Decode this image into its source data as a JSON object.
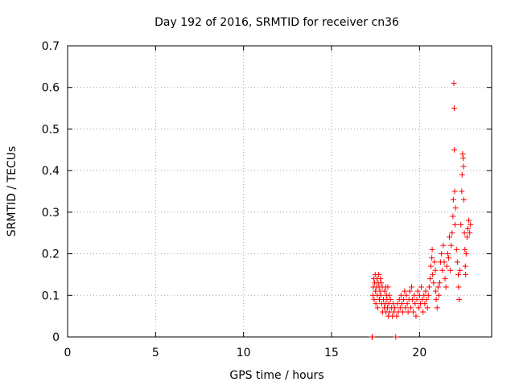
{
  "chart_data": {
    "type": "scatter",
    "title": "Day 192 of 2016, SRMTID for receiver cn36",
    "xlabel": "GPS time / hours",
    "ylabel": "SRMTID / TECUs",
    "xlim": [
      0,
      24.1
    ],
    "ylim": [
      0,
      0.7
    ],
    "xticks": [
      0,
      5,
      10,
      15,
      20
    ],
    "xtick_labels": [
      "0",
      "5",
      "10",
      "15",
      "20"
    ],
    "yticks": [
      0,
      0.1,
      0.2,
      0.3,
      0.4,
      0.5,
      0.6,
      0.7
    ],
    "ytick_labels": [
      "0",
      "0.1",
      "0.2",
      "0.3",
      "0.4",
      "0.5",
      "0.6",
      "0.7"
    ],
    "grid": true,
    "marker": "+",
    "color": "#ff0000",
    "series": [
      {
        "name": "SRMTID",
        "points": [
          [
            17.3,
            0.0
          ],
          [
            17.32,
            0.0
          ],
          [
            18.65,
            0.0
          ],
          [
            17.35,
            0.1
          ],
          [
            17.38,
            0.12
          ],
          [
            17.4,
            0.14
          ],
          [
            17.42,
            0.09
          ],
          [
            17.45,
            0.13
          ],
          [
            17.48,
            0.15
          ],
          [
            17.5,
            0.11
          ],
          [
            17.52,
            0.08
          ],
          [
            17.55,
            0.12
          ],
          [
            17.58,
            0.14
          ],
          [
            17.6,
            0.1
          ],
          [
            17.62,
            0.07
          ],
          [
            17.65,
            0.13
          ],
          [
            17.68,
            0.15
          ],
          [
            17.7,
            0.12
          ],
          [
            17.72,
            0.09
          ],
          [
            17.75,
            0.11
          ],
          [
            17.78,
            0.14
          ],
          [
            17.8,
            0.1
          ],
          [
            17.82,
            0.13
          ],
          [
            17.85,
            0.08
          ],
          [
            17.88,
            0.12
          ],
          [
            17.9,
            0.06
          ],
          [
            17.95,
            0.09
          ],
          [
            18.0,
            0.07
          ],
          [
            18.02,
            0.11
          ],
          [
            18.05,
            0.08
          ],
          [
            18.08,
            0.12
          ],
          [
            18.1,
            0.06
          ],
          [
            18.12,
            0.1
          ],
          [
            18.15,
            0.09
          ],
          [
            18.18,
            0.07
          ],
          [
            18.2,
            0.12
          ],
          [
            18.22,
            0.05
          ],
          [
            18.25,
            0.08
          ],
          [
            18.28,
            0.1
          ],
          [
            18.3,
            0.06
          ],
          [
            18.35,
            0.09
          ],
          [
            18.4,
            0.07
          ],
          [
            18.45,
            0.05
          ],
          [
            18.5,
            0.08
          ],
          [
            18.55,
            0.06
          ],
          [
            18.6,
            0.07
          ],
          [
            18.7,
            0.05
          ],
          [
            18.75,
            0.08
          ],
          [
            18.8,
            0.06
          ],
          [
            18.85,
            0.09
          ],
          [
            18.9,
            0.07
          ],
          [
            18.95,
            0.1
          ],
          [
            19.0,
            0.08
          ],
          [
            19.05,
            0.06
          ],
          [
            19.1,
            0.09
          ],
          [
            19.15,
            0.11
          ],
          [
            19.2,
            0.07
          ],
          [
            19.25,
            0.1
          ],
          [
            19.3,
            0.08
          ],
          [
            19.35,
            0.06
          ],
          [
            19.4,
            0.09
          ],
          [
            19.45,
            0.11
          ],
          [
            19.5,
            0.07
          ],
          [
            19.55,
            0.12
          ],
          [
            19.6,
            0.09
          ],
          [
            19.65,
            0.06
          ],
          [
            19.7,
            0.1
          ],
          [
            19.75,
            0.08
          ],
          [
            19.8,
            0.05
          ],
          [
            19.85,
            0.09
          ],
          [
            19.9,
            0.11
          ],
          [
            19.95,
            0.07
          ],
          [
            20.0,
            0.1
          ],
          [
            20.05,
            0.08
          ],
          [
            20.1,
            0.12
          ],
          [
            20.15,
            0.09
          ],
          [
            20.2,
            0.06
          ],
          [
            20.25,
            0.1
          ],
          [
            20.3,
            0.08
          ],
          [
            20.35,
            0.11
          ],
          [
            20.4,
            0.09
          ],
          [
            20.45,
            0.07
          ],
          [
            20.5,
            0.1
          ],
          [
            20.55,
            0.12
          ],
          [
            20.6,
            0.14
          ],
          [
            20.65,
            0.17
          ],
          [
            20.7,
            0.19
          ],
          [
            20.72,
            0.21
          ],
          [
            20.75,
            0.15
          ],
          [
            20.8,
            0.13
          ],
          [
            20.85,
            0.18
          ],
          [
            20.9,
            0.16
          ],
          [
            20.92,
            0.11
          ],
          [
            20.95,
            0.09
          ],
          [
            21.0,
            0.07
          ],
          [
            21.05,
            0.12
          ],
          [
            21.1,
            0.1
          ],
          [
            21.15,
            0.13
          ],
          [
            21.2,
            0.18
          ],
          [
            21.25,
            0.2
          ],
          [
            21.3,
            0.16
          ],
          [
            21.35,
            0.22
          ],
          [
            21.4,
            0.18
          ],
          [
            21.45,
            0.14
          ],
          [
            21.5,
            0.12
          ],
          [
            21.55,
            0.17
          ],
          [
            21.6,
            0.2
          ],
          [
            21.65,
            0.19
          ],
          [
            21.7,
            0.24
          ],
          [
            21.75,
            0.16
          ],
          [
            21.8,
            0.22
          ],
          [
            21.85,
            0.25
          ],
          [
            21.9,
            0.29
          ],
          [
            21.92,
            0.33
          ],
          [
            21.95,
            0.61
          ],
          [
            21.97,
            0.55
          ],
          [
            21.98,
            0.45
          ],
          [
            22.0,
            0.35
          ],
          [
            22.02,
            0.27
          ],
          [
            22.05,
            0.31
          ],
          [
            22.1,
            0.21
          ],
          [
            22.15,
            0.18
          ],
          [
            22.2,
            0.15
          ],
          [
            22.22,
            0.12
          ],
          [
            22.25,
            0.09
          ],
          [
            22.3,
            0.16
          ],
          [
            22.35,
            0.27
          ],
          [
            22.4,
            0.35
          ],
          [
            22.42,
            0.39
          ],
          [
            22.45,
            0.44
          ],
          [
            22.48,
            0.43
          ],
          [
            22.5,
            0.41
          ],
          [
            22.52,
            0.33
          ],
          [
            22.55,
            0.25
          ],
          [
            22.58,
            0.21
          ],
          [
            22.6,
            0.17
          ],
          [
            22.62,
            0.15
          ],
          [
            22.65,
            0.2
          ],
          [
            22.7,
            0.24
          ],
          [
            22.75,
            0.26
          ],
          [
            22.8,
            0.28
          ],
          [
            22.85,
            0.25
          ],
          [
            22.9,
            0.27
          ]
        ]
      }
    ]
  }
}
